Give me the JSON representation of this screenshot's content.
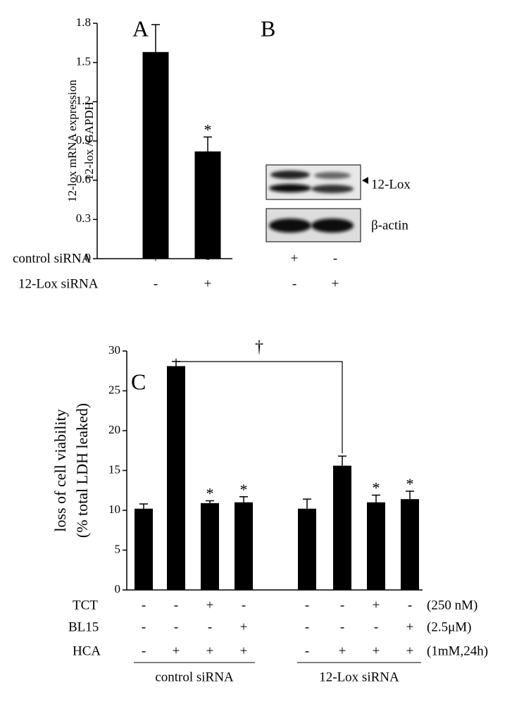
{
  "chart_data": [
    {
      "type": "bar",
      "panel": "A",
      "ylabel": [
        "12-lox mRNA expression",
        "12-lox /GAPDH"
      ],
      "values": [
        1.58,
        0.82
      ],
      "errors": [
        0.21,
        0.11
      ],
      "color": "#000000",
      "significance": [
        null,
        "*"
      ],
      "ylim": [
        0,
        1.8
      ],
      "yticks": [
        0,
        0.3,
        0.6,
        0.9,
        1.2,
        1.5,
        1.8
      ],
      "rows": [
        {
          "name": "control siRNA",
          "values": [
            "+",
            "-"
          ]
        },
        {
          "name": "12-Lox siRNA",
          "values": [
            "-",
            "+"
          ]
        }
      ]
    },
    {
      "type": "bar",
      "panel": "C",
      "ylabel": [
        "loss of cell viability",
        "(% total LDH leaked)"
      ],
      "values": [
        10.2,
        28.1,
        10.9,
        11.0,
        10.2,
        15.6,
        11.0,
        11.4
      ],
      "errors": [
        0.6,
        0.6,
        0.3,
        0.7,
        1.2,
        1.2,
        0.9,
        1.0
      ],
      "color": "#000000",
      "significance": [
        null,
        null,
        "*",
        "*",
        null,
        null,
        "*",
        "*"
      ],
      "bracket_label": "†",
      "ylim": [
        0,
        30
      ],
      "yticks": [
        0,
        5,
        10,
        15,
        20,
        25,
        30
      ],
      "rows": [
        {
          "name": "TCT",
          "values": [
            "-",
            "-",
            "+",
            "-",
            "-",
            "-",
            "+",
            "-"
          ],
          "note": "(250 nM)"
        },
        {
          "name": "BL15",
          "values": [
            "-",
            "-",
            "-",
            "+",
            "-",
            "-",
            "-",
            "+"
          ],
          "note": "(2.5μM)"
        },
        {
          "name": "HCA",
          "values": [
            "-",
            "+",
            "+",
            "+",
            "-",
            "+",
            "+",
            "+"
          ],
          "note": "(1mM,24h)"
        }
      ],
      "groups": [
        "control siRNA",
        "12-Lox siRNA"
      ]
    }
  ],
  "blot": {
    "panel": "B",
    "bands": [
      "12-Lox",
      "β-actin"
    ],
    "rows": [
      [
        "+",
        "-"
      ],
      [
        "-",
        "+"
      ]
    ]
  }
}
